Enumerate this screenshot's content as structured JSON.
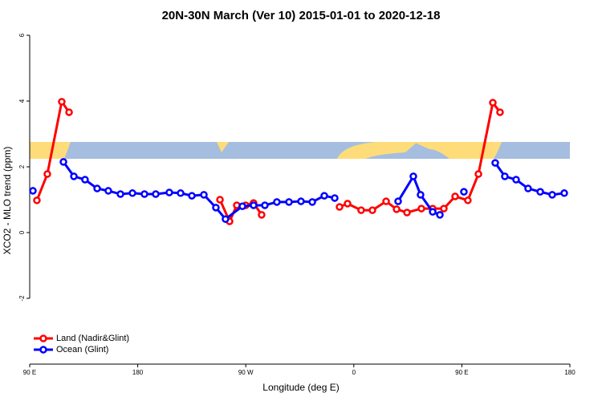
{
  "chart_data": {
    "type": "line",
    "title": "20N-30N March (Ver 10)   2015-01-01 to 2020-12-18",
    "x_label": "Longitude (deg E)",
    "y_label": "XCO2 - MLO trend (ppm)",
    "xlim": [
      90,
      540
    ],
    "xticks": [
      {
        "value": 90,
        "label": "90 E"
      },
      {
        "value": 180,
        "label": "180"
      },
      {
        "value": 270,
        "label": "90 W"
      },
      {
        "value": 360,
        "label": "0"
      },
      {
        "value": 450,
        "label": "90 E"
      },
      {
        "value": 540,
        "label": "180"
      }
    ],
    "ylim": [
      -4,
      6.2
    ],
    "yticks": [
      -2,
      0,
      2,
      4,
      6
    ],
    "legend": "bottom-left",
    "series": [
      {
        "name": "Land (Nadir&Glint)",
        "color": "#ff0000",
        "x": [
          96,
          104.7,
          116.7,
          122.8,
          null,
          248.5,
          256.5,
          262.5,
          269.9,
          276.5,
          283.2,
          null,
          348.1,
          354.8,
          366.1,
          375.5,
          386.9,
          395.6,
          404.3,
          416.3,
          425.7,
          435,
          444.4,
          455,
          463.8,
          475.8,
          481.8
        ],
        "values": [
          0.98,
          1.78,
          3.98,
          3.66,
          null,
          1.0,
          0.34,
          0.83,
          0.83,
          0.9,
          0.54,
          null,
          0.78,
          0.88,
          0.68,
          0.68,
          0.95,
          0.71,
          0.61,
          0.73,
          0.73,
          0.73,
          1.1,
          0.98,
          1.78,
          3.95,
          3.66
        ]
      },
      {
        "name": "Ocean (Glint)",
        "color": "#0000ff",
        "x": [
          92.7,
          null,
          118.1,
          126.8,
          136.1,
          146.2,
          155.5,
          165.6,
          175.6,
          185.6,
          195,
          206.3,
          215.7,
          225.1,
          235.1,
          245.1,
          253.1,
          267.2,
          276.5,
          285.9,
          295.9,
          306,
          316,
          325.4,
          335.4,
          344.1,
          null,
          396.9,
          409.6,
          415.6,
          425.7,
          431.7,
          null,
          451.7,
          null,
          477.8,
          485.8,
          495.2,
          505.2,
          515.3,
          525.3,
          535.3
        ],
        "values": [
          1.27,
          null,
          2.15,
          1.71,
          1.61,
          1.34,
          1.27,
          1.17,
          1.2,
          1.17,
          1.17,
          1.22,
          1.2,
          1.12,
          1.15,
          0.76,
          0.41,
          0.8,
          0.83,
          0.83,
          0.93,
          0.93,
          0.95,
          0.93,
          1.12,
          1.05,
          null,
          0.95,
          1.71,
          1.15,
          0.63,
          0.54,
          null,
          1.24,
          null,
          2.12,
          1.71,
          1.61,
          1.34,
          1.24,
          1.15,
          1.2
        ]
      }
    ]
  }
}
